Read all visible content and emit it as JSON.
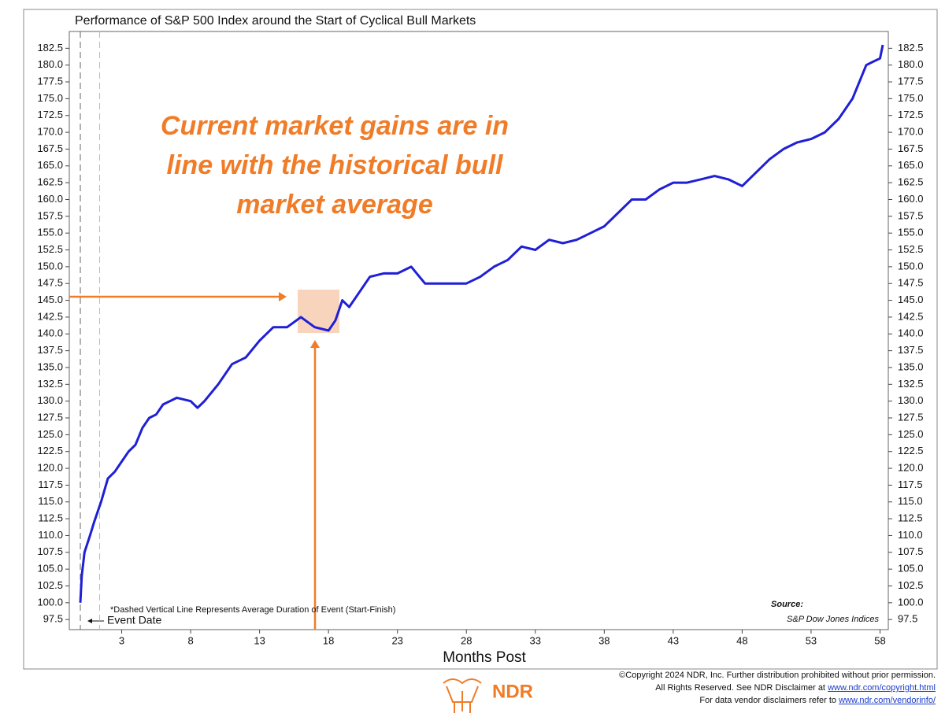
{
  "chart_data": {
    "type": "line",
    "title": "Performance of S&P 500 Index around the Start of Cyclical Bull Markets",
    "x_label": "Months Post",
    "color": "#1f1fd6",
    "x": [
      0,
      0.1,
      0.3,
      0.7,
      1,
      1.5,
      2,
      2.5,
      3,
      3.5,
      4,
      4.5,
      5,
      5.5,
      6,
      7,
      8,
      8.5,
      9,
      10,
      11,
      12,
      13,
      14,
      15,
      16,
      17,
      18,
      18.5,
      19,
      19.5,
      20,
      21,
      22,
      23,
      24,
      25,
      26,
      27,
      28,
      29,
      30,
      31,
      32,
      33,
      34,
      35,
      36,
      37,
      38,
      39,
      40,
      41,
      42,
      43,
      44,
      45,
      46,
      47,
      48,
      49,
      50,
      51,
      52,
      53,
      54,
      55,
      56,
      57,
      57.5,
      58,
      58.2
    ],
    "values": [
      100,
      104,
      107.5,
      110,
      112,
      115,
      118.5,
      119.5,
      121,
      122.5,
      123.5,
      126,
      127.5,
      128,
      129.5,
      130.5,
      130,
      129,
      130,
      132.5,
      135.5,
      136.5,
      139,
      141,
      141,
      142.5,
      141,
      140.5,
      142,
      145,
      144,
      145.5,
      148.5,
      149,
      149,
      150,
      147.5,
      147.5,
      147.5,
      147.5,
      148.5,
      150,
      151,
      153,
      152.5,
      154,
      153.5,
      154,
      155,
      156,
      158,
      160,
      160,
      161.5,
      162.5,
      162.5,
      163,
      163.5,
      163,
      162,
      164,
      166,
      167.5,
      168.5,
      169,
      170,
      172,
      175,
      180,
      180.5,
      181,
      183
    ],
    "xlim": [
      -0.8,
      58.6
    ],
    "xticks": [
      3,
      8,
      13,
      18,
      23,
      28,
      33,
      38,
      43,
      48,
      53,
      58
    ],
    "ylim": [
      96,
      185
    ],
    "yticks": [
      97.5,
      {
        "value": 100,
        "label": "100.0"
      },
      102.5,
      {
        "value": 105,
        "label": "105.0"
      },
      107.5,
      {
        "value": 110,
        "label": "110.0"
      },
      112.5,
      {
        "value": 115,
        "label": "115.0"
      },
      117.5,
      {
        "value": 120,
        "label": "120.0"
      },
      122.5,
      {
        "value": 125,
        "label": "125.0"
      },
      127.5,
      {
        "value": 130,
        "label": "130.0"
      },
      132.5,
      {
        "value": 135,
        "label": "135.0"
      },
      137.5,
      {
        "value": 140,
        "label": "140.0"
      },
      142.5,
      {
        "value": 145,
        "label": "145.0"
      },
      147.5,
      {
        "value": 150,
        "label": "150.0"
      },
      152.5,
      {
        "value": 155,
        "label": "155.0"
      },
      157.5,
      {
        "value": 160,
        "label": "160.0"
      },
      162.5,
      {
        "value": 165,
        "label": "165.0"
      },
      167.5,
      {
        "value": 170,
        "label": "170.0"
      },
      172.5,
      {
        "value": 175,
        "label": "175.0"
      },
      177.5,
      {
        "value": 180,
        "label": "180.0"
      },
      182.5
    ],
    "dashed_lines": [
      0,
      1.4
    ],
    "annotation": [
      "Current market gains are in",
      "line with the historical bull",
      "market average"
    ],
    "footnote": "*Dashed Vertical Line Represents Average Duration of Event (Start-Finish)",
    "event_label": "Event Date",
    "source_title": "Source:",
    "source": "S&P Dow Jones Indices"
  },
  "footer": {
    "line1": "©Copyright 2024 NDR, Inc. Further distribution prohibited without prior permission.",
    "line2": "All Rights Reserved. See NDR Disclaimer at ",
    "link1": "www.ndr.com/copyright.html",
    "line3": "For data vendor disclaimers refer to ",
    "link2": "www.ndr.com/vendorinfo/",
    "logo": "NDR"
  }
}
